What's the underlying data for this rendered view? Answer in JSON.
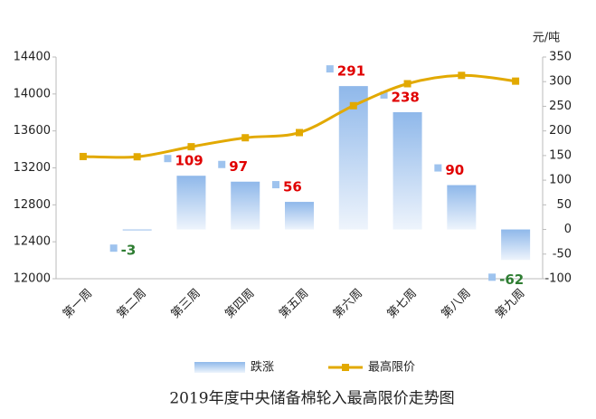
{
  "chart_data": {
    "type": "bar-line",
    "title": "2019年度中央储备棉轮入最高限价走势图",
    "y2_label": "元/吨",
    "categories": [
      "第一周",
      "第二周",
      "第三周",
      "第四周",
      "第五周",
      "第六周",
      "第七周",
      "第八周",
      "第九周"
    ],
    "series": [
      {
        "name": "跌涨",
        "type": "bar",
        "axis": "y2",
        "color": "#9ec3ee",
        "values": [
          null,
          -3,
          109,
          97,
          56,
          291,
          238,
          90,
          -62
        ]
      },
      {
        "name": "最高限价",
        "type": "line",
        "color": "#e2a900",
        "values": [
          13323,
          13320,
          13429,
          13526,
          13582,
          13873,
          14111,
          14201,
          14139
        ]
      }
    ],
    "ylim": [
      12000,
      14400
    ],
    "yticks": [
      12000,
      12400,
      12800,
      13200,
      13600,
      14000,
      14400
    ],
    "y2lim": [
      -100,
      350
    ],
    "y2ticks": [
      -100,
      -50,
      0,
      50,
      100,
      150,
      200,
      250,
      300,
      350
    ],
    "grid": false,
    "legend": "bottom",
    "positive_label_color": "#e00000",
    "negative_label_color": "#2e7d32"
  }
}
